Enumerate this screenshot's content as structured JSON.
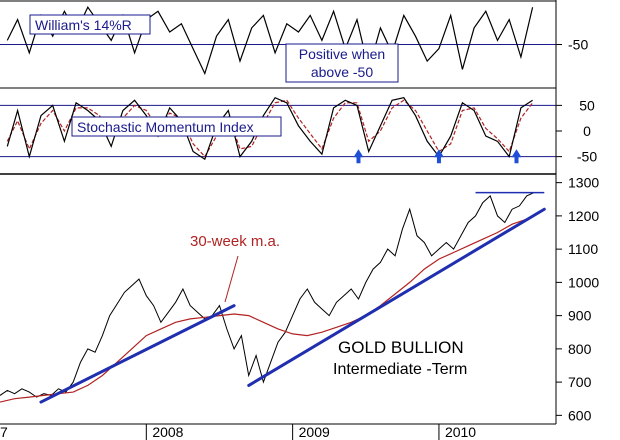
{
  "chart_data": [
    {
      "type": "line",
      "panel": "williams",
      "label": "William's 14%R",
      "note_lines": [
        "Positive when",
        "above -50"
      ],
      "y_ticks": [
        "-50"
      ],
      "reference_levels": [
        -50
      ],
      "ylim": [
        -100,
        0
      ],
      "colors": {
        "line": "#000000",
        "reference": "#1a1a8c",
        "label": "#1a1a8c"
      },
      "series": [
        {
          "name": "William's 14%R",
          "x": [
            2007.05,
            2007.12,
            2007.2,
            2007.28,
            2007.36,
            2007.44,
            2007.52,
            2007.6,
            2007.68,
            2007.76,
            2007.84,
            2007.92,
            2008.0,
            2008.08,
            2008.16,
            2008.24,
            2008.32,
            2008.4,
            2008.48,
            2008.56,
            2008.64,
            2008.72,
            2008.8,
            2008.88,
            2008.96,
            2009.04,
            2009.12,
            2009.2,
            2009.28,
            2009.36,
            2009.44,
            2009.52,
            2009.6,
            2009.68,
            2009.76,
            2009.84,
            2009.92,
            2010.0,
            2010.08,
            2010.16,
            2010.24,
            2010.32,
            2010.4,
            2010.48,
            2010.56,
            2010.64
          ],
          "values": [
            -45,
            -20,
            -60,
            -15,
            -40,
            -10,
            -35,
            -5,
            -25,
            -45,
            -15,
            -60,
            -20,
            -10,
            -35,
            -25,
            -55,
            -85,
            -40,
            -20,
            -70,
            -30,
            -15,
            -60,
            -25,
            -35,
            -15,
            -45,
            -10,
            -55,
            -20,
            -80,
            -30,
            -60,
            -15,
            -40,
            -70,
            -55,
            -15,
            -80,
            -30,
            -10,
            -45,
            -20,
            -65,
            -5
          ]
        }
      ]
    },
    {
      "type": "line",
      "panel": "stochastic",
      "label": "Stochastic Momentum Index",
      "y_ticks": [
        "50",
        "0",
        "-50"
      ],
      "reference_levels": [
        50,
        -50
      ],
      "ylim": [
        -80,
        80
      ],
      "colors": {
        "smi": "#000000",
        "signal": "#b22222",
        "reference": "#1a1a8c",
        "arrow": "#1f4fd6"
      },
      "arrows_at_x": [
        2009.45,
        2010.0,
        2010.53
      ],
      "series": [
        {
          "name": "SMI",
          "x": [
            2007.05,
            2007.12,
            2007.2,
            2007.28,
            2007.36,
            2007.44,
            2007.52,
            2007.6,
            2007.68,
            2007.76,
            2007.84,
            2007.92,
            2008.0,
            2008.08,
            2008.16,
            2008.24,
            2008.32,
            2008.4,
            2008.48,
            2008.56,
            2008.64,
            2008.72,
            2008.8,
            2008.88,
            2008.96,
            2009.04,
            2009.12,
            2009.2,
            2009.28,
            2009.36,
            2009.44,
            2009.52,
            2009.6,
            2009.68,
            2009.76,
            2009.84,
            2009.92,
            2010.0,
            2010.08,
            2010.16,
            2010.24,
            2010.32,
            2010.4,
            2010.48,
            2010.56,
            2010.64
          ],
          "values": [
            -30,
            40,
            -50,
            30,
            50,
            -20,
            55,
            40,
            20,
            -30,
            40,
            60,
            30,
            -10,
            45,
            20,
            -40,
            -55,
            10,
            40,
            -50,
            -20,
            30,
            65,
            55,
            10,
            -20,
            -45,
            45,
            60,
            50,
            -40,
            10,
            60,
            65,
            30,
            -20,
            -50,
            -10,
            55,
            40,
            -10,
            -20,
            -50,
            45,
            60
          ]
        },
        {
          "name": "Signal",
          "x": [
            2007.05,
            2007.12,
            2007.2,
            2007.28,
            2007.36,
            2007.44,
            2007.52,
            2007.6,
            2007.68,
            2007.76,
            2007.84,
            2007.92,
            2008.0,
            2008.08,
            2008.16,
            2008.24,
            2008.32,
            2008.4,
            2008.48,
            2008.56,
            2008.64,
            2008.72,
            2008.8,
            2008.88,
            2008.96,
            2009.04,
            2009.12,
            2009.2,
            2009.28,
            2009.36,
            2009.44,
            2009.52,
            2009.6,
            2009.68,
            2009.76,
            2009.84,
            2009.92,
            2010.0,
            2010.08,
            2010.16,
            2010.24,
            2010.32,
            2010.4,
            2010.48,
            2010.56,
            2010.64
          ],
          "values": [
            -20,
            20,
            -35,
            15,
            40,
            0,
            45,
            45,
            30,
            -10,
            25,
            50,
            40,
            5,
            35,
            25,
            -25,
            -50,
            -10,
            30,
            -35,
            -30,
            15,
            55,
            60,
            25,
            -5,
            -35,
            25,
            55,
            55,
            -20,
            0,
            45,
            60,
            40,
            0,
            -40,
            -25,
            40,
            45,
            5,
            -15,
            -40,
            25,
            55
          ]
        }
      ]
    },
    {
      "type": "line",
      "panel": "price",
      "title": "GOLD BULLION",
      "subtitle": "Intermediate -Term",
      "annotation": "30-week m.a.",
      "x_ticks": [
        "2008",
        "2009",
        "2010"
      ],
      "x_tick_values": [
        2008,
        2009,
        2010
      ],
      "x_edge_label": "7",
      "xlim": [
        2007.0,
        2010.8
      ],
      "y_ticks": [
        "1300",
        "1200",
        "1100",
        "1000",
        "900",
        "800",
        "700",
        "600"
      ],
      "y_tick_values": [
        1300,
        1200,
        1100,
        1000,
        900,
        800,
        700,
        600
      ],
      "ylim": [
        580,
        1320
      ],
      "colors": {
        "price": "#000000",
        "moving_average": "#b22222",
        "trendline": "#1f2fb0",
        "resistance": "#1f2fb0",
        "annotation": "#b22222"
      },
      "series": [
        {
          "name": "Price",
          "x": [
            2007.0,
            2007.05,
            2007.1,
            2007.15,
            2007.2,
            2007.25,
            2007.3,
            2007.35,
            2007.4,
            2007.45,
            2007.5,
            2007.55,
            2007.6,
            2007.65,
            2007.7,
            2007.75,
            2007.8,
            2007.85,
            2007.9,
            2007.95,
            2008.0,
            2008.05,
            2008.1,
            2008.15,
            2008.2,
            2008.25,
            2008.3,
            2008.35,
            2008.4,
            2008.45,
            2008.5,
            2008.55,
            2008.6,
            2008.65,
            2008.7,
            2008.75,
            2008.8,
            2008.85,
            2008.9,
            2008.95,
            2009.0,
            2009.05,
            2009.1,
            2009.15,
            2009.2,
            2009.25,
            2009.3,
            2009.35,
            2009.4,
            2009.45,
            2009.5,
            2009.55,
            2009.6,
            2009.65,
            2009.7,
            2009.75,
            2009.8,
            2009.85,
            2009.9,
            2009.95,
            2010.0,
            2010.05,
            2010.1,
            2010.15,
            2010.2,
            2010.25,
            2010.3,
            2010.35,
            2010.4,
            2010.45,
            2010.5,
            2010.55,
            2010.6,
            2010.65
          ],
          "values": [
            660,
            675,
            665,
            680,
            670,
            655,
            665,
            660,
            680,
            670,
            700,
            760,
            800,
            790,
            840,
            900,
            935,
            970,
            990,
            1010,
            960,
            930,
            880,
            910,
            940,
            980,
            930,
            910,
            890,
            900,
            930,
            860,
            800,
            840,
            720,
            780,
            700,
            760,
            820,
            850,
            900,
            950,
            980,
            940,
            920,
            900,
            940,
            960,
            980,
            950,
            1000,
            1040,
            1060,
            1100,
            1080,
            1160,
            1220,
            1140,
            1120,
            1080,
            1100,
            1120,
            1100,
            1140,
            1180,
            1200,
            1240,
            1260,
            1200,
            1180,
            1220,
            1230,
            1260,
            1270
          ]
        },
        {
          "name": "30-week m.a.",
          "x": [
            2007.0,
            2007.1,
            2007.2,
            2007.3,
            2007.4,
            2007.5,
            2007.6,
            2007.7,
            2007.8,
            2007.9,
            2008.0,
            2008.1,
            2008.2,
            2008.3,
            2008.4,
            2008.5,
            2008.6,
            2008.7,
            2008.8,
            2008.9,
            2009.0,
            2009.1,
            2009.2,
            2009.3,
            2009.4,
            2009.5,
            2009.6,
            2009.7,
            2009.8,
            2009.9,
            2010.0,
            2010.1,
            2010.2,
            2010.3,
            2010.4,
            2010.5,
            2010.6,
            2010.65
          ],
          "values": [
            640,
            650,
            655,
            660,
            665,
            670,
            690,
            720,
            760,
            800,
            840,
            860,
            880,
            890,
            895,
            900,
            905,
            900,
            880,
            860,
            845,
            840,
            850,
            865,
            880,
            900,
            930,
            965,
            1000,
            1040,
            1070,
            1090,
            1110,
            1130,
            1150,
            1175,
            1190,
            1200
          ]
        }
      ],
      "trendlines": [
        {
          "x": [
            2007.28,
            2008.6
          ],
          "values": [
            640,
            930
          ]
        },
        {
          "x": [
            2008.7,
            2010.72
          ],
          "values": [
            690,
            1220
          ]
        }
      ],
      "resistance": {
        "x": [
          2010.25,
          2010.72
        ],
        "value": 1270
      }
    }
  ]
}
